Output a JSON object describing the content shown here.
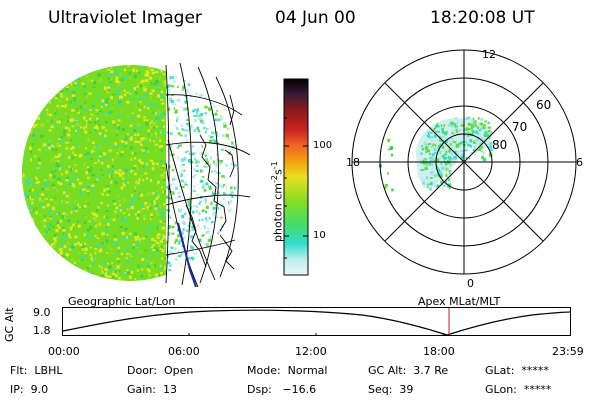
{
  "header": {
    "title": "Ultraviolet Imager",
    "date": "04 Jun 00",
    "time": "18:20:08 UT"
  },
  "colorbar": {
    "label": "photon cm",
    "label_sup1": "-2",
    "label_mid": "s",
    "label_sup2": "-1",
    "ticks": [
      "100",
      "10"
    ]
  },
  "polar": {
    "hour_labels": [
      "12",
      "18",
      "6",
      "0"
    ],
    "lat_labels": [
      "60",
      "70",
      "80"
    ]
  },
  "timeline": {
    "left_title": "Geographic Lat/Lon",
    "right_title": "Apex MLat/MLT",
    "axis_label": "GC Alt",
    "y_ticks": [
      "9.0",
      "1.8"
    ],
    "x_ticks": [
      "00:00",
      "06:00",
      "12:00",
      "18:00",
      "23:59"
    ]
  },
  "status": {
    "flt": "Flt:  LBHL",
    "ip": "IP:  9.0",
    "door": "Door:  Open",
    "gain": "Gain:  13",
    "mode": "Mode:  Normal",
    "dsp": "Dsp:   −16.6",
    "gc_alt": "GC Alt:  3.7 Re",
    "seq": "Seq:  39",
    "glat": "GLat:  *****",
    "glon": "GLon:  *****"
  },
  "colors": {
    "emission_green": "#66dd22",
    "emission_yellow": "#e6e628",
    "emission_cyan": "#33ddbb",
    "cursor_red": "#cc2222"
  }
}
